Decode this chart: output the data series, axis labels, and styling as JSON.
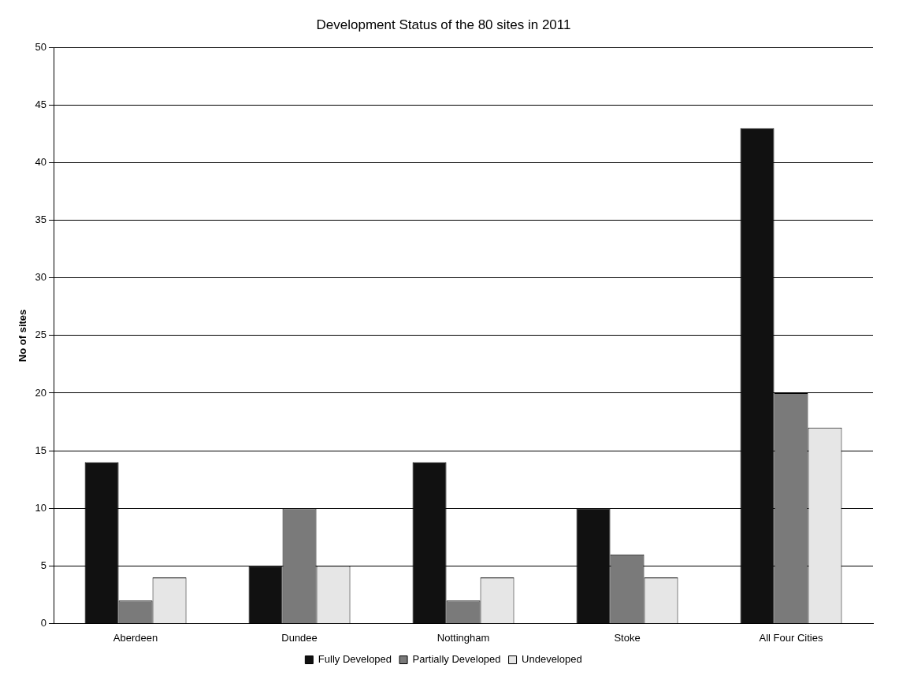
{
  "chart_data": {
    "type": "bar",
    "title": "Development Status of the 80 sites in 2011",
    "ylabel": "No of sites",
    "categories": [
      "Aberdeen",
      "Dundee",
      "Nottingham",
      "Stoke",
      "All Four Cities"
    ],
    "series": [
      {
        "name": "Fully Developed",
        "color": "#111111",
        "values": [
          14,
          5,
          14,
          10,
          43
        ]
      },
      {
        "name": "Partially Developed",
        "color": "#7a7a7a",
        "values": [
          2,
          10,
          2,
          6,
          20
        ]
      },
      {
        "name": "Undeveloped",
        "color": "#e6e6e6",
        "values": [
          4,
          5,
          4,
          4,
          17
        ]
      }
    ],
    "ylim": [
      0,
      50
    ],
    "yticks": [
      0,
      5,
      10,
      15,
      20,
      25,
      30,
      35,
      40,
      45,
      50
    ],
    "grid": "y",
    "legend": "bottom"
  }
}
